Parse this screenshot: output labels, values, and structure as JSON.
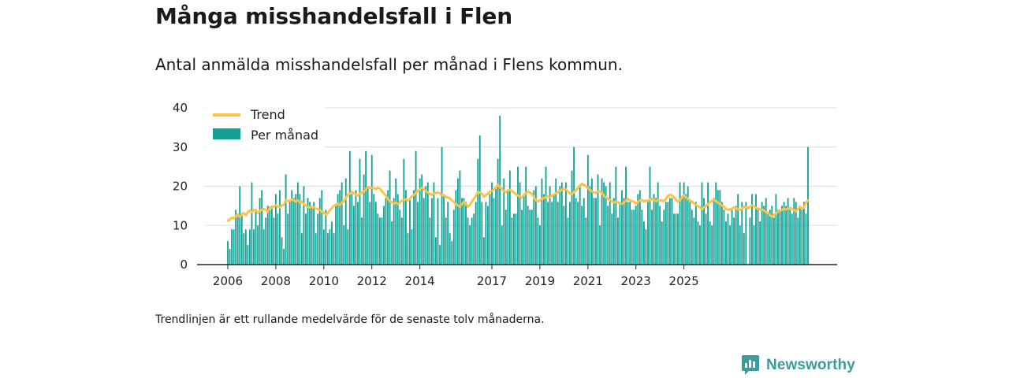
{
  "header": {
    "title": "Många misshandelsfall i Flen",
    "subtitle": "Antal anmälda misshandelsfall per månad i Flens kommun."
  },
  "footer": {
    "note": "Trendlinjen är ett rullande medelvärde för de senaste tolv månaderna.",
    "brand": "Newsworthy",
    "brand_icon": "newsworthy-logo-icon"
  },
  "colors": {
    "bars": "#12a295",
    "trend": "#fcc249",
    "grid": "#dcdcdc",
    "axis": "#222222",
    "brand": "#3a9d9b"
  },
  "chart_data": {
    "type": "bar",
    "x_start": "2006-01",
    "ylim": [
      0,
      40
    ],
    "yticks": [
      "0",
      "10",
      "20",
      "30",
      "40"
    ],
    "xticks": [
      {
        "label": "2006",
        "date": "2006-01"
      },
      {
        "label": "2008",
        "date": "2008-01"
      },
      {
        "label": "2010",
        "date": "2010-01"
      },
      {
        "label": "2012",
        "date": "2012-01"
      },
      {
        "label": "2014",
        "date": "2014-01"
      },
      {
        "label": "2017",
        "date": "2017-01"
      },
      {
        "label": "2019",
        "date": "2019-01"
      },
      {
        "label": "2021",
        "date": "2021-01"
      },
      {
        "label": "2023",
        "date": "2023-01"
      },
      {
        "label": "2025",
        "date": "2025-01"
      }
    ],
    "legend": {
      "position": "top-left",
      "entries": [
        {
          "label": "Trend",
          "kind": "line"
        },
        {
          "label": "Per månad",
          "kind": "bar"
        }
      ]
    },
    "grid": true,
    "series": [
      {
        "name": "Per månad",
        "kind": "bar",
        "values": [
          6,
          4,
          9,
          9,
          14,
          13,
          20,
          13,
          8,
          9,
          5,
          9,
          21,
          9,
          14,
          10,
          17,
          19,
          9,
          12,
          15,
          14,
          15,
          12,
          18,
          13,
          19,
          7,
          4,
          23,
          13,
          16,
          19,
          17,
          18,
          21,
          18,
          8,
          20,
          13,
          17,
          16,
          15,
          16,
          8,
          13,
          17,
          19,
          9,
          14,
          8,
          9,
          11,
          8,
          15,
          18,
          19,
          21,
          10,
          22,
          9,
          29,
          18,
          15,
          19,
          16,
          27,
          12,
          23,
          29,
          20,
          16,
          28,
          18,
          16,
          13,
          12,
          12,
          15,
          17,
          19,
          24,
          11,
          17,
          22,
          18,
          14,
          12,
          27,
          19,
          8,
          17,
          9,
          19,
          29,
          16,
          22,
          23,
          17,
          20,
          21,
          12,
          17,
          21,
          7,
          17,
          5,
          30,
          18,
          12,
          16,
          8,
          6,
          14,
          19,
          22,
          24,
          17,
          17,
          16,
          12,
          10,
          12,
          13,
          16,
          27,
          33,
          16,
          7,
          16,
          15,
          18,
          21,
          17,
          20,
          27,
          38,
          10,
          22,
          14,
          19,
          24,
          12,
          13,
          13,
          25,
          21,
          14,
          18,
          25,
          15,
          14,
          14,
          19,
          20,
          12,
          10,
          22,
          18,
          25,
          16,
          20,
          16,
          18,
          22,
          16,
          20,
          21,
          15,
          21,
          12,
          16,
          24,
          30,
          17,
          16,
          20,
          15,
          17,
          12,
          28,
          20,
          22,
          17,
          17,
          23,
          10,
          22,
          21,
          20,
          15,
          21,
          13,
          17,
          25,
          12,
          16,
          19,
          17,
          25,
          16,
          16,
          14,
          14,
          15,
          18,
          19,
          14,
          11,
          9,
          16,
          25,
          14,
          18,
          17,
          21,
          15,
          11,
          14,
          16,
          16,
          17,
          17,
          13,
          13,
          13,
          21,
          17,
          21,
          18,
          20,
          16,
          14,
          12,
          16,
          11,
          10,
          21,
          17,
          13,
          21,
          11,
          10,
          17,
          21,
          19,
          19,
          16,
          14,
          11,
          13,
          10,
          14,
          12,
          15,
          18,
          10,
          16,
          8,
          16,
          0,
          12,
          18,
          10,
          18,
          14,
          11,
          16,
          15,
          17,
          13,
          14,
          15,
          12,
          18,
          14,
          14,
          15,
          16,
          15,
          17,
          14,
          13,
          17,
          16,
          12,
          15,
          14,
          16,
          13,
          30
        ]
      },
      {
        "name": "Trend",
        "kind": "line",
        "values": [
          11.2,
          11.5,
          12,
          11.8,
          12.4,
          12.6,
          12.2,
          12.8,
          13.2,
          12.6,
          13.4,
          13.8,
          13.4,
          13.9,
          14,
          13.2,
          13.7,
          14,
          14.2,
          14,
          13.4,
          14.6,
          14.5,
          14.8,
          15.2,
          14.8,
          14.6,
          15.1,
          15.2,
          16.5,
          16.3,
          16.2,
          16.6,
          16.4,
          16.1,
          16.4,
          15.9,
          16,
          15.5,
          15,
          14.8,
          14.6,
          14.7,
          14.6,
          14.3,
          14.2,
          13.9,
          13.5,
          13.2,
          12.8,
          13.1,
          13.9,
          14.4,
          15,
          15.3,
          15.5,
          15.2,
          15.8,
          16.2,
          17,
          17.8,
          18.1,
          18.6,
          18.2,
          17.9,
          17.6,
          18,
          18.4,
          18.6,
          19.2,
          19.8,
          19.5,
          19.6,
          19.5,
          19.3,
          19.6,
          19.4,
          18.8,
          18.2,
          17.6,
          16.8,
          16.2,
          15.9,
          15.6,
          15.8,
          15.4,
          15.9,
          16.3,
          16.5,
          16.6,
          16.4,
          16.8,
          17.4,
          17.8,
          18.2,
          18.8,
          19.1,
          19.6,
          19.3,
          18.8,
          18.4,
          18,
          17.8,
          18.1,
          18.3,
          18.4,
          18.2,
          17.8,
          17.6,
          17.3,
          17.1,
          16.9,
          16.4,
          16,
          15.4,
          15.1,
          14.8,
          15.6,
          15.9,
          15.5,
          14.8,
          15.2,
          16.1,
          16.8,
          17.5,
          18.5,
          18.4,
          18.1,
          17.3,
          17.7,
          18.1,
          18.6,
          18.8,
          19.2,
          19.6,
          20.4,
          19.8,
          19.4,
          18.7,
          18.5,
          18.9,
          19.1,
          18.8,
          18.4,
          18,
          17.6,
          17.4,
          17.1,
          17.8,
          18.2,
          18.6,
          18.4,
          18.1,
          17.2,
          16.4,
          16.1,
          16.4,
          16.8,
          17,
          17.2,
          17.4,
          17.2,
          17.6,
          17.9,
          18.2,
          18.5,
          18.8,
          19.1,
          19.4,
          19.2,
          18.7,
          18.1,
          18,
          18.5,
          19,
          19.5,
          20.2,
          20.6,
          20.4,
          20,
          19.5,
          19,
          18.7,
          18.4,
          18.3,
          18.6,
          18.7,
          18.2,
          17.5,
          17.2,
          16.8,
          16.4,
          16.2,
          15.8,
          16,
          15.9,
          15.6,
          15.5,
          15.8,
          16.3,
          16.8,
          16.4,
          16.2,
          16,
          15.6,
          15.9,
          16.4,
          16.5,
          16.1,
          16.4,
          16.2,
          16.6,
          16.8,
          16.5,
          16.2,
          16.5,
          16.3,
          16.4,
          16.2,
          16.8,
          17.5,
          17.9,
          17.6,
          17.2,
          16.6,
          16.1,
          16.4,
          17.2,
          17.6,
          17.2,
          16.8,
          16.4,
          16.1,
          15.6,
          15.3,
          14.9,
          14.6,
          14.2,
          14.6,
          15,
          15.4,
          15.9,
          16.3,
          16.5,
          16.2,
          15.8,
          15.5,
          15.1,
          14.8,
          14.2,
          14,
          14.1,
          14.3,
          14.6,
          14.4,
          14.1,
          13.9,
          14.3,
          14.8,
          14.6,
          14.4,
          14.8,
          15.1,
          14.9,
          14.5,
          14.3,
          14.1,
          14,
          13.8,
          13.4,
          13.2,
          12.6,
          12.3,
          12.6,
          13.1,
          13.5,
          13.8,
          14,
          14.2,
          14.1,
          14.3,
          14.5,
          14.2,
          13.9,
          13.6,
          14.2,
          14.8,
          14.3,
          14.6,
          15.8,
          16.4
        ]
      }
    ]
  }
}
